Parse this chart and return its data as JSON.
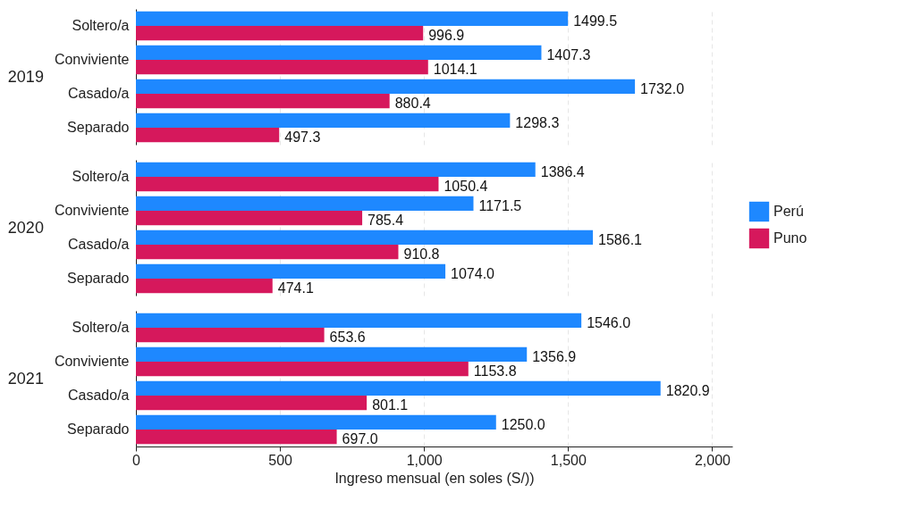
{
  "chart_data": [
    {
      "type": "bar",
      "orientation": "horizontal",
      "ylabel": "2019",
      "categories": [
        "Soltero/a",
        "Conviviente",
        "Casado/a",
        "Separado"
      ],
      "series": [
        {
          "color": "#1e88ff",
          "values": [
            1499.5,
            1407.3,
            1732.0,
            1298.3
          ],
          "value_labels": [
            "1499.5",
            "1407.3",
            "1732.0",
            "1298.3"
          ]
        },
        {
          "color": "#d6185c",
          "values": [
            996.9,
            1014.1,
            880.4,
            497.3
          ],
          "value_labels": [
            "996.9",
            "1014.1",
            "880.4",
            "497.3"
          ]
        }
      ],
      "xticks": [
        {
          "value": 0,
          "label": null
        },
        {
          "value": 500,
          "label": null
        },
        {
          "value": 1000,
          "label": null
        },
        {
          "value": 1500,
          "label": null
        },
        {
          "value": 2000,
          "label": null
        }
      ],
      "grid": "x",
      "tick_labels": "y"
    },
    {
      "type": "bar",
      "orientation": "horizontal",
      "ylabel": "2020",
      "categories": [
        "Soltero/a",
        "Conviviente",
        "Casado/a",
        "Separado"
      ],
      "series": [
        {
          "name": "Perú",
          "color": "#1e88ff",
          "values": [
            1386.4,
            1171.5,
            1586.1,
            1074.0
          ],
          "value_labels": [
            "1386.4",
            "1171.5",
            "1586.1",
            "1074.0"
          ]
        },
        {
          "name": "Puno",
          "color": "#d6185c",
          "values": [
            1050.4,
            785.4,
            910.8,
            474.1
          ],
          "value_labels": [
            "1050.4",
            "785.4",
            "910.8",
            "474.1"
          ]
        }
      ],
      "xticks": [
        {
          "value": 0,
          "label": null
        },
        {
          "value": 500,
          "label": null
        },
        {
          "value": 1000,
          "label": null
        },
        {
          "value": 1500,
          "label": null
        },
        {
          "value": 2000,
          "label": null
        }
      ],
      "grid": "x",
      "legend": "right",
      "tick_labels": "y"
    },
    {
      "type": "bar",
      "orientation": "horizontal",
      "ylabel": "2021",
      "xlabel": "Ingreso mensual (en soles (S/))",
      "categories": [
        "Soltero/a",
        "Conviviente",
        "Casado/a",
        "Separado"
      ],
      "series": [
        {
          "color": "#1e88ff",
          "values": [
            1546.0,
            1356.9,
            1820.9,
            1250.0
          ],
          "value_labels": [
            "1546.0",
            "1356.9",
            "1820.9",
            "1250.0"
          ]
        },
        {
          "color": "#d6185c",
          "values": [
            653.6,
            1153.8,
            801.1,
            697.0
          ],
          "value_labels": [
            "653.6",
            "1153.8",
            "801.1",
            "697.0"
          ]
        }
      ],
      "xlim": [
        0,
        2070
      ],
      "xticks": [
        0,
        500,
        {
          "value": 1000,
          "label": "1,000"
        },
        {
          "value": 1500,
          "label": "1,500"
        },
        {
          "value": 2000,
          "label": "2,000"
        }
      ],
      "grid": "x"
    }
  ]
}
